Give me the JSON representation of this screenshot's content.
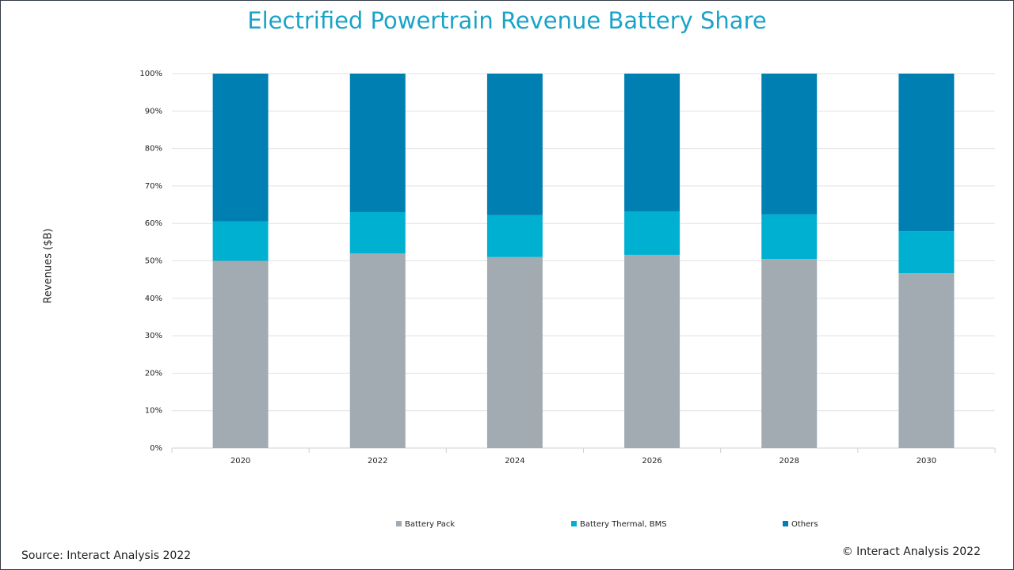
{
  "chart_data": {
    "type": "stacked_bar",
    "title": "Electrified Powertrain Revenue Battery Share",
    "y_label": "Revenues ($B)",
    "categories": [
      "2020",
      "2022",
      "2024",
      "2026",
      "2028",
      "2030"
    ],
    "series": [
      {
        "name": "Battery Pack",
        "color": "#a2abb2",
        "values": [
          50,
          52,
          51,
          51.6,
          50.5,
          46.7
        ]
      },
      {
        "name": "Battery Thermal, BMS",
        "color": "#00b0d0",
        "values": [
          10.5,
          11,
          11.2,
          11.6,
          11.9,
          11.2
        ]
      },
      {
        "name": "Others",
        "color": "#007fb2",
        "values": [
          39.5,
          37,
          37.8,
          36.8,
          37.6,
          42.1
        ]
      }
    ],
    "ylim": [
      0,
      100
    ],
    "yticks": [
      {
        "value": 0,
        "label": "0%"
      },
      {
        "value": 10,
        "label": "10%"
      },
      {
        "value": 20,
        "label": "20%"
      },
      {
        "value": 30,
        "label": "30%"
      },
      {
        "value": 40,
        "label": "40%"
      },
      {
        "value": 50,
        "label": "50%"
      },
      {
        "value": 60,
        "label": "60%"
      },
      {
        "value": 70,
        "label": "70%"
      },
      {
        "value": 80,
        "label": "80%"
      },
      {
        "value": 90,
        "label": "90%"
      },
      {
        "value": 100,
        "label": "100%"
      }
    ],
    "grid": true,
    "legend": "bottom"
  },
  "footer": {
    "source": "Source: Interact Analysis 2022",
    "copyright": "© Interact Analysis 2022"
  }
}
